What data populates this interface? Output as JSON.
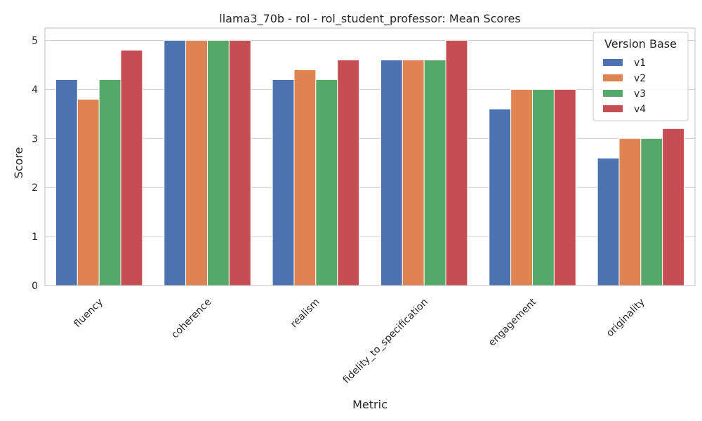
{
  "chart_data": {
    "type": "bar",
    "title": "llama3_70b - rol - rol_student_professor: Mean Scores",
    "xlabel": "Metric",
    "ylabel": "Score",
    "ylim": [
      0,
      5.25
    ],
    "yticks": [
      0,
      1,
      2,
      3,
      4,
      5
    ],
    "grid": "horizontal",
    "legend": {
      "title": "Version Base",
      "placement": "top-right"
    },
    "categories": [
      "fluency",
      "coherence",
      "realism",
      "fidelity_to_specification",
      "engagement",
      "originality"
    ],
    "series": [
      {
        "name": "v1",
        "color": "#4c72b0",
        "values": [
          4.2,
          5.0,
          4.2,
          4.6,
          3.6,
          2.6
        ]
      },
      {
        "name": "v2",
        "color": "#dd8452",
        "values": [
          3.8,
          5.0,
          4.4,
          4.6,
          4.0,
          3.0
        ]
      },
      {
        "name": "v3",
        "color": "#55a868",
        "values": [
          4.2,
          5.0,
          4.2,
          4.6,
          4.0,
          3.0
        ]
      },
      {
        "name": "v4",
        "color": "#c44e52",
        "values": [
          4.8,
          5.0,
          4.6,
          5.0,
          4.0,
          3.2
        ]
      }
    ]
  }
}
